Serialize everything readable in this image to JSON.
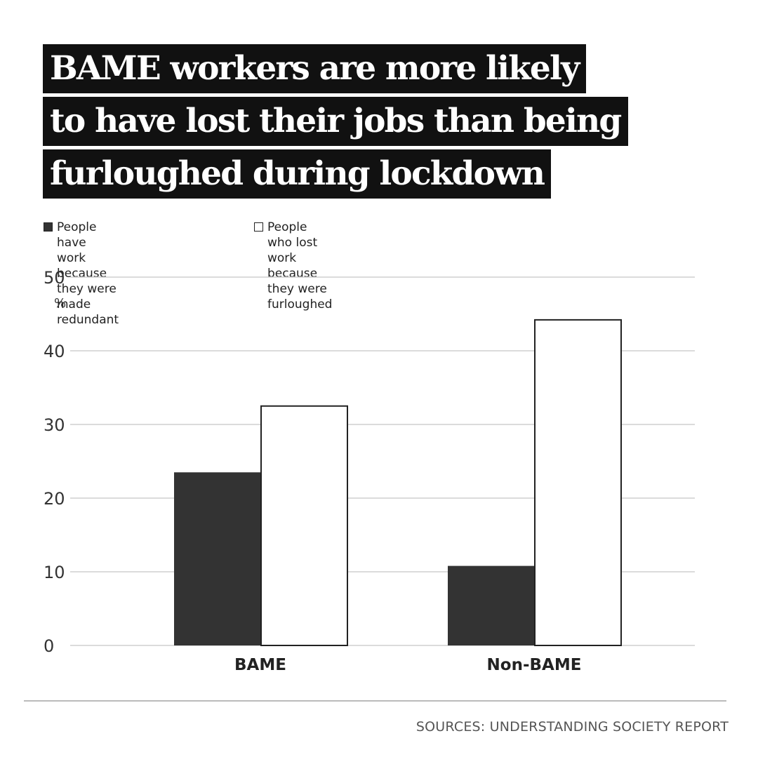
{
  "title_lines": [
    "BAME workers are more likely",
    "to have lost their jobs than being",
    "furloughed during lockdown"
  ],
  "legend": [
    {
      "label": "People have work because they were made redundant",
      "color": "#333333"
    },
    {
      "label": "People who lost work because they were furloughed",
      "color": "#ffffff"
    }
  ],
  "chart_data": {
    "type": "bar",
    "categories": [
      "BAME",
      "Non-BAME"
    ],
    "series": [
      {
        "name": "People have work because they were made redundant",
        "values": [
          23.5,
          10.8
        ],
        "color": "#333333"
      },
      {
        "name": "People who lost work because they were furloughed",
        "values": [
          32.5,
          44.2
        ],
        "color": "#ffffff"
      }
    ],
    "ylabel": "%",
    "ylim": [
      0,
      50
    ],
    "yticks": [
      0,
      10,
      20,
      30,
      40,
      50
    ],
    "grid": true,
    "legend_position": "top-left"
  },
  "source": "SOURCES: UNDERSTANDING SOCIETY REPORT"
}
